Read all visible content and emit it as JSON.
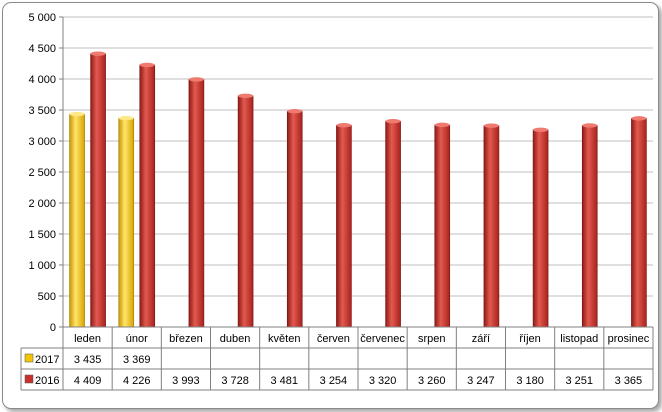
{
  "chart_data": {
    "type": "bar",
    "categories": [
      "leden",
      "únor",
      "březen",
      "duben",
      "květen",
      "červen",
      "červenec",
      "srpen",
      "září",
      "říjen",
      "listopad",
      "prosinec"
    ],
    "series": [
      {
        "name": "2017",
        "color": "#f2c500",
        "values": [
          3435,
          3369,
          null,
          null,
          null,
          null,
          null,
          null,
          null,
          null,
          null,
          null
        ],
        "labels": [
          "3 435",
          "3 369",
          "",
          "",
          "",
          "",
          "",
          "",
          "",
          "",
          "",
          ""
        ]
      },
      {
        "name": "2016",
        "color": "#c8302b",
        "values": [
          4409,
          4226,
          3993,
          3728,
          3481,
          3254,
          3320,
          3260,
          3247,
          3180,
          3251,
          3365
        ],
        "labels": [
          "4 409",
          "4 226",
          "3 993",
          "3 728",
          "3 481",
          "3 254",
          "3 320",
          "3 260",
          "3 247",
          "3 180",
          "3 251",
          "3 365"
        ]
      }
    ],
    "ylim": [
      0,
      5000
    ],
    "yticks": [
      {
        "value": 0,
        "label": "0"
      },
      {
        "value": 500,
        "label": "500"
      },
      {
        "value": 1000,
        "label": "1 000"
      },
      {
        "value": 1500,
        "label": "1 500"
      },
      {
        "value": 2000,
        "label": "2 000"
      },
      {
        "value": 2500,
        "label": "2 500"
      },
      {
        "value": 3000,
        "label": "3 000"
      },
      {
        "value": 3500,
        "label": "3 500"
      },
      {
        "value": 4000,
        "label": "4 000"
      },
      {
        "value": 4500,
        "label": "4 500"
      },
      {
        "value": 5000,
        "label": "5 000"
      }
    ],
    "grid": true,
    "legend": "data-table",
    "title": "",
    "xlabel": "",
    "ylabel": ""
  }
}
